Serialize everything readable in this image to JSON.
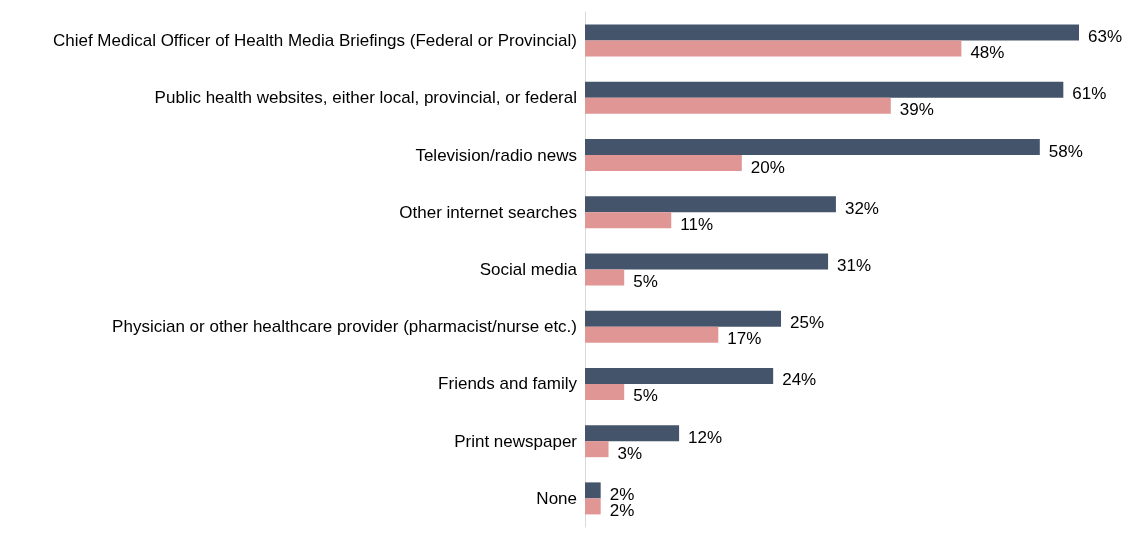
{
  "chart_data": {
    "type": "bar",
    "orientation": "horizontal",
    "categories": [
      "Chief Medical Officer of Health Media Briefings (Federal or Provincial)",
      "Public health websites, either local, provincial, or federal",
      "Television/radio news",
      "Other internet searches",
      "Social media",
      "Physician or other healthcare provider (pharmacist/nurse etc.)",
      "Friends and family",
      "Print newspaper",
      "None"
    ],
    "series": [
      {
        "color": "#44546a",
        "values": [
          63,
          61,
          58,
          32,
          31,
          25,
          24,
          12,
          2
        ],
        "value_labels": [
          "63%",
          "61%",
          "58%",
          "32%",
          "31%",
          "25%",
          "24%",
          "12%",
          "2%"
        ]
      },
      {
        "color": "#e09694",
        "values": [
          48,
          39,
          20,
          11,
          5,
          17,
          5,
          3,
          2
        ],
        "value_labels": [
          "48%",
          "39%",
          "20%",
          "11%",
          "5%",
          "17%",
          "5%",
          "3%",
          "2%"
        ]
      }
    ]
  }
}
